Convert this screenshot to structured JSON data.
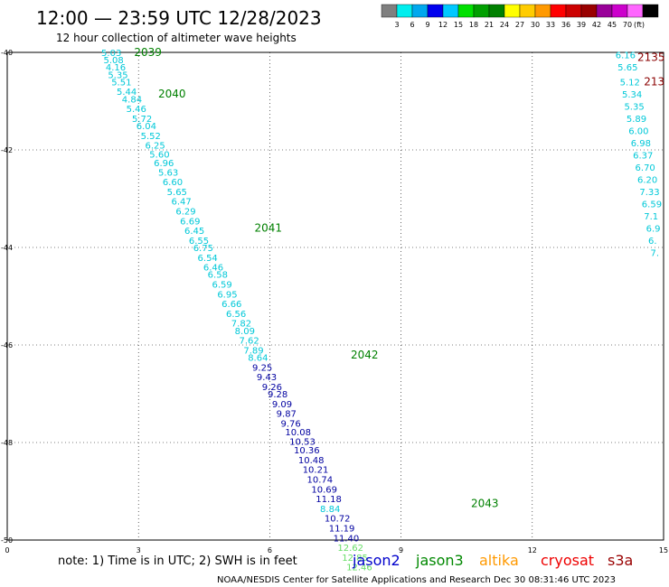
{
  "header": {
    "title": "12:00 — 23:59 UTC 12/28/2023",
    "subtitle": "12 hour collection of altimeter wave heights"
  },
  "legend": {
    "unit": "(ft)",
    "colors": [
      "#7f7f7f",
      "#00eeee",
      "#00a8ee",
      "#0000ee",
      "#00c8ff",
      "#00e000",
      "#00a000",
      "#008000",
      "#ffff00",
      "#ffcc00",
      "#ff9900",
      "#ff0000",
      "#cc0000",
      "#990000",
      "#990099",
      "#cc00cc",
      "#ff66ff",
      "#000000"
    ],
    "labels": [
      "3",
      "6",
      "9",
      "12",
      "15",
      "18",
      "21",
      "24",
      "27",
      "30",
      "33",
      "36",
      "39",
      "42",
      "45",
      "70"
    ]
  },
  "axes": {
    "x_ticks": [
      {
        "label": "0",
        "value": 0
      },
      {
        "label": "3",
        "value": 3
      },
      {
        "label": "6",
        "value": 6
      },
      {
        "label": "9",
        "value": 9
      },
      {
        "label": "12",
        "value": 12
      },
      {
        "label": "15",
        "value": 15
      }
    ],
    "y_ticks": [
      {
        "label": "-40",
        "value": -40
      },
      {
        "label": "-42",
        "value": -42
      },
      {
        "label": "-44",
        "value": -44
      },
      {
        "label": "-46",
        "value": -46
      },
      {
        "label": "-48",
        "value": -48
      },
      {
        "label": "-50",
        "value": -50
      }
    ]
  },
  "passes": [
    {
      "label": "2039",
      "color": "#008000",
      "lon": 2.9,
      "lat": -40.0
    },
    {
      "label": "2040",
      "color": "#008000",
      "lon": 3.45,
      "lat": -40.85
    },
    {
      "label": "2041",
      "color": "#008000",
      "lon": 5.65,
      "lat": -43.6
    },
    {
      "label": "2042",
      "color": "#008000",
      "lon": 7.85,
      "lat": -46.2
    },
    {
      "label": "2043",
      "color": "#008000",
      "lon": 10.6,
      "lat": -49.25
    },
    {
      "label": "2135",
      "color": "#8b0000",
      "lon": 14.4,
      "lat": -40.1
    },
    {
      "label": "213",
      "color": "#8b0000",
      "lon": 14.55,
      "lat": -40.6
    }
  ],
  "observations": [
    {
      "value": "5.03",
      "lon": 2.15,
      "lat": -40.0,
      "color": "#00c8d8"
    },
    {
      "value": "5.08",
      "lon": 2.2,
      "lat": -40.15,
      "color": "#00c8d8"
    },
    {
      "value": "4.16",
      "lon": 2.25,
      "lat": -40.3,
      "color": "#00c8d8"
    },
    {
      "value": "5.35",
      "lon": 2.3,
      "lat": -40.45,
      "color": "#00c8d8"
    },
    {
      "value": "5.51",
      "lon": 2.38,
      "lat": -40.6,
      "color": "#00c8d8"
    },
    {
      "value": "5.44",
      "lon": 2.5,
      "lat": -40.8,
      "color": "#00c8d8"
    },
    {
      "value": "4.84",
      "lon": 2.62,
      "lat": -40.95,
      "color": "#00c8d8"
    },
    {
      "value": "5.46",
      "lon": 2.72,
      "lat": -41.15,
      "color": "#00c8d8"
    },
    {
      "value": "5.72",
      "lon": 2.85,
      "lat": -41.35,
      "color": "#00c8d8"
    },
    {
      "value": "6.04",
      "lon": 2.95,
      "lat": -41.5,
      "color": "#00c8d8"
    },
    {
      "value": "5.52",
      "lon": 3.05,
      "lat": -41.7,
      "color": "#00c8d8"
    },
    {
      "value": "6.25",
      "lon": 3.15,
      "lat": -41.9,
      "color": "#00c8d8"
    },
    {
      "value": "5.60",
      "lon": 3.25,
      "lat": -42.08,
      "color": "#00c8d8"
    },
    {
      "value": "6.96",
      "lon": 3.35,
      "lat": -42.26,
      "color": "#00c8d8"
    },
    {
      "value": "5.63",
      "lon": 3.45,
      "lat": -42.45,
      "color": "#00c8d8"
    },
    {
      "value": "6.60",
      "lon": 3.55,
      "lat": -42.65,
      "color": "#00c8d8"
    },
    {
      "value": "5.65",
      "lon": 3.65,
      "lat": -42.85,
      "color": "#00c8d8"
    },
    {
      "value": "6.47",
      "lon": 3.75,
      "lat": -43.05,
      "color": "#00c8d8"
    },
    {
      "value": "6.29",
      "lon": 3.85,
      "lat": -43.25,
      "color": "#00c8d8"
    },
    {
      "value": "6.69",
      "lon": 3.95,
      "lat": -43.45,
      "color": "#00c8d8"
    },
    {
      "value": "6.45",
      "lon": 4.05,
      "lat": -43.65,
      "color": "#00c8d8"
    },
    {
      "value": "6.55",
      "lon": 4.15,
      "lat": -43.85,
      "color": "#00c8d8"
    },
    {
      "value": "6.75",
      "lon": 4.25,
      "lat": -44.0,
      "color": "#00c8d8"
    },
    {
      "value": "6.54",
      "lon": 4.35,
      "lat": -44.2,
      "color": "#00c8d8"
    },
    {
      "value": "6.46",
      "lon": 4.48,
      "lat": -44.4,
      "color": "#00c8d8"
    },
    {
      "value": "6.58",
      "lon": 4.58,
      "lat": -44.55,
      "color": "#00c8d8"
    },
    {
      "value": "6.59",
      "lon": 4.68,
      "lat": -44.75,
      "color": "#00c8d8"
    },
    {
      "value": "6.95",
      "lon": 4.8,
      "lat": -44.95,
      "color": "#00c8d8"
    },
    {
      "value": "6.66",
      "lon": 4.9,
      "lat": -45.15,
      "color": "#00c8d8"
    },
    {
      "value": "6.56",
      "lon": 5.0,
      "lat": -45.35,
      "color": "#00c8d8"
    },
    {
      "value": "7.82",
      "lon": 5.12,
      "lat": -45.55,
      "color": "#00c8d8"
    },
    {
      "value": "8.09",
      "lon": 5.2,
      "lat": -45.7,
      "color": "#00c8d8"
    },
    {
      "value": "7.62",
      "lon": 5.3,
      "lat": -45.9,
      "color": "#00c8d8"
    },
    {
      "value": "7.89",
      "lon": 5.4,
      "lat": -46.1,
      "color": "#00c8d8"
    },
    {
      "value": "8.64",
      "lon": 5.5,
      "lat": -46.25,
      "color": "#00c8d8"
    },
    {
      "value": "9.25",
      "lon": 5.6,
      "lat": -46.45,
      "color": "#0000a0"
    },
    {
      "value": "9.43",
      "lon": 5.7,
      "lat": -46.65,
      "color": "#0000a0"
    },
    {
      "value": "9.26",
      "lon": 5.82,
      "lat": -46.85,
      "color": "#0000a0"
    },
    {
      "value": "9.28",
      "lon": 5.95,
      "lat": -47.0,
      "color": "#0000a0"
    },
    {
      "value": "9.09",
      "lon": 6.05,
      "lat": -47.2,
      "color": "#0000a0"
    },
    {
      "value": "9.87",
      "lon": 6.15,
      "lat": -47.4,
      "color": "#0000a0"
    },
    {
      "value": "9.76",
      "lon": 6.25,
      "lat": -47.6,
      "color": "#0000a0"
    },
    {
      "value": "10.08",
      "lon": 6.35,
      "lat": -47.78,
      "color": "#0000a0"
    },
    {
      "value": "10.53",
      "lon": 6.45,
      "lat": -47.97,
      "color": "#0000a0"
    },
    {
      "value": "10.36",
      "lon": 6.55,
      "lat": -48.15,
      "color": "#0000a0"
    },
    {
      "value": "10.48",
      "lon": 6.65,
      "lat": -48.35,
      "color": "#0000a0"
    },
    {
      "value": "10.21",
      "lon": 6.75,
      "lat": -48.55,
      "color": "#0000a0"
    },
    {
      "value": "10.74",
      "lon": 6.85,
      "lat": -48.75,
      "color": "#0000a0"
    },
    {
      "value": "10.69",
      "lon": 6.95,
      "lat": -48.95,
      "color": "#0000a0"
    },
    {
      "value": "11.18",
      "lon": 7.05,
      "lat": -49.15,
      "color": "#0000a0"
    },
    {
      "value": "8.84",
      "lon": 7.15,
      "lat": -49.35,
      "color": "#00c8d8"
    },
    {
      "value": "10.72",
      "lon": 7.25,
      "lat": -49.55,
      "color": "#0000a0"
    },
    {
      "value": "11.19",
      "lon": 7.35,
      "lat": -49.75,
      "color": "#0000a0"
    },
    {
      "value": "11.40",
      "lon": 7.45,
      "lat": -49.95,
      "color": "#0000a0"
    },
    {
      "value": "12.62",
      "lon": 7.55,
      "lat": -50.15,
      "color": "#66dd66"
    },
    {
      "value": "12.85",
      "lon": 7.65,
      "lat": -50.35,
      "color": "#66dd66"
    },
    {
      "value": "12.46",
      "lon": 7.75,
      "lat": -50.55,
      "color": "#66dd66"
    },
    {
      "value": "6.16",
      "lon": 13.9,
      "lat": -40.05,
      "color": "#00c8d8"
    },
    {
      "value": "5.65",
      "lon": 13.95,
      "lat": -40.3,
      "color": "#00c8d8"
    },
    {
      "value": "5.12",
      "lon": 14.0,
      "lat": -40.6,
      "color": "#00c8d8"
    },
    {
      "value": "5.34",
      "lon": 14.05,
      "lat": -40.85,
      "color": "#00c8d8"
    },
    {
      "value": "5.35",
      "lon": 14.1,
      "lat": -41.1,
      "color": "#00c8d8"
    },
    {
      "value": "5.89",
      "lon": 14.15,
      "lat": -41.35,
      "color": "#00c8d8"
    },
    {
      "value": "6.00",
      "lon": 14.2,
      "lat": -41.6,
      "color": "#00c8d8"
    },
    {
      "value": "6.98",
      "lon": 14.25,
      "lat": -41.85,
      "color": "#00c8d8"
    },
    {
      "value": "6.37",
      "lon": 14.3,
      "lat": -42.1,
      "color": "#00c8d8"
    },
    {
      "value": "6.70",
      "lon": 14.35,
      "lat": -42.35,
      "color": "#00c8d8"
    },
    {
      "value": "6.20",
      "lon": 14.4,
      "lat": -42.6,
      "color": "#00c8d8"
    },
    {
      "value": "7.33",
      "lon": 14.45,
      "lat": -42.85,
      "color": "#00c8d8"
    },
    {
      "value": "6.59",
      "lon": 14.5,
      "lat": -43.1,
      "color": "#00c8d8"
    },
    {
      "value": "7.1",
      "lon": 14.55,
      "lat": -43.35,
      "color": "#00c8d8"
    },
    {
      "value": "6.9",
      "lon": 14.6,
      "lat": -43.6,
      "color": "#00c8d8"
    },
    {
      "value": "6.",
      "lon": 14.65,
      "lat": -43.85,
      "color": "#00c8d8"
    },
    {
      "value": "7.",
      "lon": 14.7,
      "lat": -44.1,
      "color": "#00c8d8"
    }
  ],
  "footer": {
    "note": "note:  1) Time is in UTC;  2) SWH is in feet",
    "satellites": [
      {
        "name": "jason2",
        "color": "#0000cc"
      },
      {
        "name": "jason3",
        "color": "#008800"
      },
      {
        "name": "altika",
        "color": "#ff9900"
      },
      {
        "name": "cryosat",
        "color": "#ee0000"
      },
      {
        "name": "s3a",
        "color": "#990000"
      }
    ],
    "credit": "NOAA/NESDIS Center for Satellite Applications and Research     Dec 30 08:31:46 UTC 2023"
  }
}
